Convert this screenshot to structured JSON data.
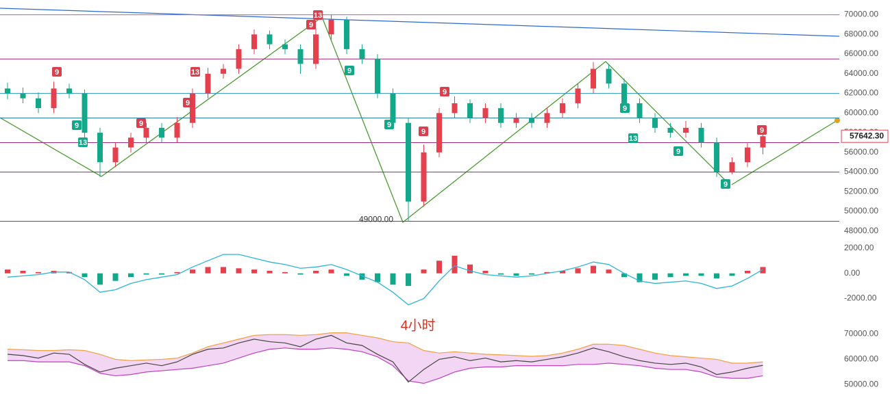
{
  "period_label": "4小时",
  "chart_data": [
    {
      "type": "candlestick",
      "up_color": "#e5404e",
      "down_color": "#13a88a",
      "ylim": [
        47500,
        71500
      ],
      "yticks": [
        {
          "value": 48000,
          "label": "48000.00"
        },
        {
          "value": 50000,
          "label": "50000.00"
        },
        {
          "value": 52000,
          "label": "52000.00"
        },
        {
          "value": 54000,
          "label": "54000.00"
        },
        {
          "value": 56000,
          "label": "56000.00"
        },
        {
          "value": 58000,
          "label": "58000.00"
        },
        {
          "value": 60000,
          "label": "60000.00"
        },
        {
          "value": 62000,
          "label": "62000.00"
        },
        {
          "value": 64000,
          "label": "64000.00"
        },
        {
          "value": 66000,
          "label": "66000.00"
        },
        {
          "value": 68000,
          "label": "68000.00"
        },
        {
          "value": 70000,
          "label": "70000.00"
        }
      ],
      "open": [
        62500,
        62000,
        61500,
        60500,
        62500,
        62000,
        58000,
        55000,
        56500,
        57500,
        58500,
        57500,
        59000,
        62000,
        64000,
        64500,
        66500,
        68000,
        67000,
        66500,
        65000,
        68000,
        69500,
        66500,
        65500,
        62000,
        59000,
        51000,
        56000,
        60000,
        61000,
        59500,
        60500,
        59000,
        59500,
        59000,
        60000,
        61000,
        62500,
        64500,
        63000,
        61000,
        59500,
        58500,
        58000,
        58500,
        57000,
        54000,
        55000,
        56500
      ],
      "high": [
        63100,
        62600,
        62100,
        63200,
        63000,
        62400,
        58500,
        57000,
        58000,
        59000,
        59000,
        59600,
        62500,
        64600,
        65000,
        67000,
        68500,
        68400,
        67500,
        67000,
        68600,
        70000,
        69800,
        67000,
        66000,
        62500,
        59500,
        56800,
        60500,
        61700,
        61400,
        61000,
        61000,
        60000,
        60000,
        60500,
        61500,
        63000,
        65200,
        65000,
        63500,
        61500,
        60000,
        59000,
        59200,
        59000,
        57500,
        55500,
        57000,
        58300
      ],
      "low": [
        61400,
        61000,
        60000,
        60000,
        61500,
        57500,
        53500,
        54500,
        56000,
        57000,
        57000,
        57000,
        58500,
        61500,
        63500,
        64000,
        66000,
        66500,
        66000,
        64000,
        64500,
        67500,
        66000,
        65000,
        61500,
        58500,
        49000,
        50500,
        55500,
        59500,
        59000,
        59000,
        58500,
        58500,
        58500,
        58500,
        59500,
        60500,
        62000,
        62500,
        60500,
        59000,
        58000,
        57500,
        57500,
        56500,
        53500,
        53800,
        54500,
        55800
      ],
      "close": [
        62000,
        61500,
        60500,
        62500,
        62000,
        58000,
        55000,
        56500,
        57500,
        58500,
        57500,
        59000,
        62000,
        64000,
        64500,
        66500,
        68000,
        67000,
        66500,
        65000,
        68000,
        69500,
        66500,
        65500,
        62000,
        59000,
        51000,
        56000,
        60000,
        61000,
        59500,
        60500,
        59000,
        59500,
        59000,
        60000,
        61000,
        62500,
        64500,
        63000,
        61000,
        59500,
        58500,
        58000,
        58500,
        57000,
        54000,
        55000,
        56500,
        57642.3
      ],
      "hlines": [
        {
          "value": 70000,
          "color": "#c850c8"
        },
        {
          "value": 65500,
          "color": "#a02880"
        },
        {
          "value": 62000,
          "color": "#2a90b8"
        },
        {
          "value": 59500,
          "color": "#2a80a8"
        },
        {
          "value": 57000,
          "color": "#a02880"
        },
        {
          "value": 54000,
          "color": "#802a90"
        },
        {
          "value": 49000,
          "color": "#4a4aa0"
        }
      ],
      "last_price": {
        "value": 57642.3,
        "label": "57642.30"
      },
      "annotations": [
        {
          "value": 49000,
          "label": "49000.00"
        }
      ],
      "td_labels": [
        "9",
        "9",
        "13",
        "9",
        "9",
        "13",
        "9",
        "13",
        "9",
        "9",
        "9",
        "9",
        "9",
        "13",
        "9",
        "9",
        "9"
      ]
    },
    {
      "type": "bar",
      "ylim": [
        -3000,
        2800
      ],
      "yticks": [
        {
          "value": -2000,
          "label": "-2000.00"
        },
        {
          "value": 0,
          "label": "0.00"
        },
        {
          "value": 2000,
          "label": "2000.00"
        }
      ],
      "values": [
        300,
        200,
        100,
        200,
        100,
        -300,
        -900,
        -600,
        -300,
        -100,
        -100,
        100,
        300,
        500,
        500,
        400,
        300,
        200,
        100,
        -100,
        200,
        300,
        -200,
        -500,
        -700,
        -900,
        -1000,
        300,
        1000,
        1400,
        700,
        200,
        -100,
        -200,
        -100,
        100,
        200,
        400,
        600,
        300,
        -300,
        -700,
        -500,
        -300,
        -200,
        -200,
        -400,
        -200,
        200,
        500
      ],
      "series": [
        {
          "color": "#2bb5d8",
          "values": [
            -300,
            -200,
            -100,
            100,
            100,
            -500,
            -1500,
            -1300,
            -800,
            -500,
            -300,
            -100,
            500,
            1000,
            1500,
            1500,
            1200,
            900,
            700,
            400,
            500,
            700,
            300,
            -200,
            -700,
            -1500,
            -2500,
            -2000,
            -600,
            600,
            200,
            -100,
            -200,
            -300,
            -200,
            0,
            200,
            500,
            900,
            700,
            0,
            -600,
            -800,
            -700,
            -600,
            -800,
            -1200,
            -1000,
            -400,
            300
          ]
        }
      ],
      "up_color": "#e5404e",
      "down_color": "#13a88a"
    },
    {
      "type": "line",
      "ylim": [
        45500,
        75000
      ],
      "yticks": [
        {
          "value": 50000,
          "label": "50000.00"
        },
        {
          "value": 60000,
          "label": "60000.00"
        },
        {
          "value": 70000,
          "label": "70000.00"
        }
      ],
      "series": [
        {
          "color": "#f0a040",
          "values": [
            64000,
            63800,
            63500,
            63500,
            63800,
            63500,
            62000,
            60000,
            59500,
            59800,
            60000,
            60500,
            62500,
            65000,
            66500,
            68000,
            69500,
            69800,
            69800,
            69500,
            69800,
            70500,
            70500,
            69500,
            68500,
            67000,
            66500,
            63500,
            62500,
            63000,
            62500,
            62000,
            61800,
            61500,
            61200,
            61500,
            62500,
            64000,
            66000,
            66000,
            65500,
            64000,
            62500,
            61500,
            61000,
            60500,
            60000,
            58500,
            58500,
            59000
          ]
        },
        {
          "color": "#c040c0",
          "values": [
            59500,
            59500,
            59000,
            59000,
            59000,
            57500,
            54500,
            53500,
            54000,
            55000,
            55500,
            56000,
            56500,
            57500,
            58500,
            60500,
            62500,
            64000,
            64500,
            64000,
            64000,
            64500,
            64000,
            63000,
            61000,
            57500,
            51500,
            50500,
            52500,
            55000,
            56500,
            57000,
            57000,
            57500,
            57500,
            57500,
            57500,
            58000,
            58000,
            58500,
            58000,
            57500,
            56500,
            56000,
            56000,
            55000,
            53000,
            52500,
            52500,
            53500
          ]
        },
        {
          "color": "#444444",
          "values": [
            62000,
            61500,
            60500,
            62500,
            62000,
            58000,
            55000,
            56500,
            57500,
            58500,
            57500,
            59000,
            62000,
            64000,
            64500,
            66500,
            68000,
            67000,
            66500,
            65000,
            68000,
            69500,
            66500,
            65500,
            62000,
            59000,
            51000,
            56000,
            60000,
            61000,
            59500,
            60500,
            59000,
            59500,
            59000,
            60000,
            61000,
            62500,
            64500,
            63000,
            61000,
            59500,
            58500,
            58000,
            58500,
            57000,
            54000,
            55000,
            56500,
            57642.3
          ]
        }
      ]
    }
  ]
}
